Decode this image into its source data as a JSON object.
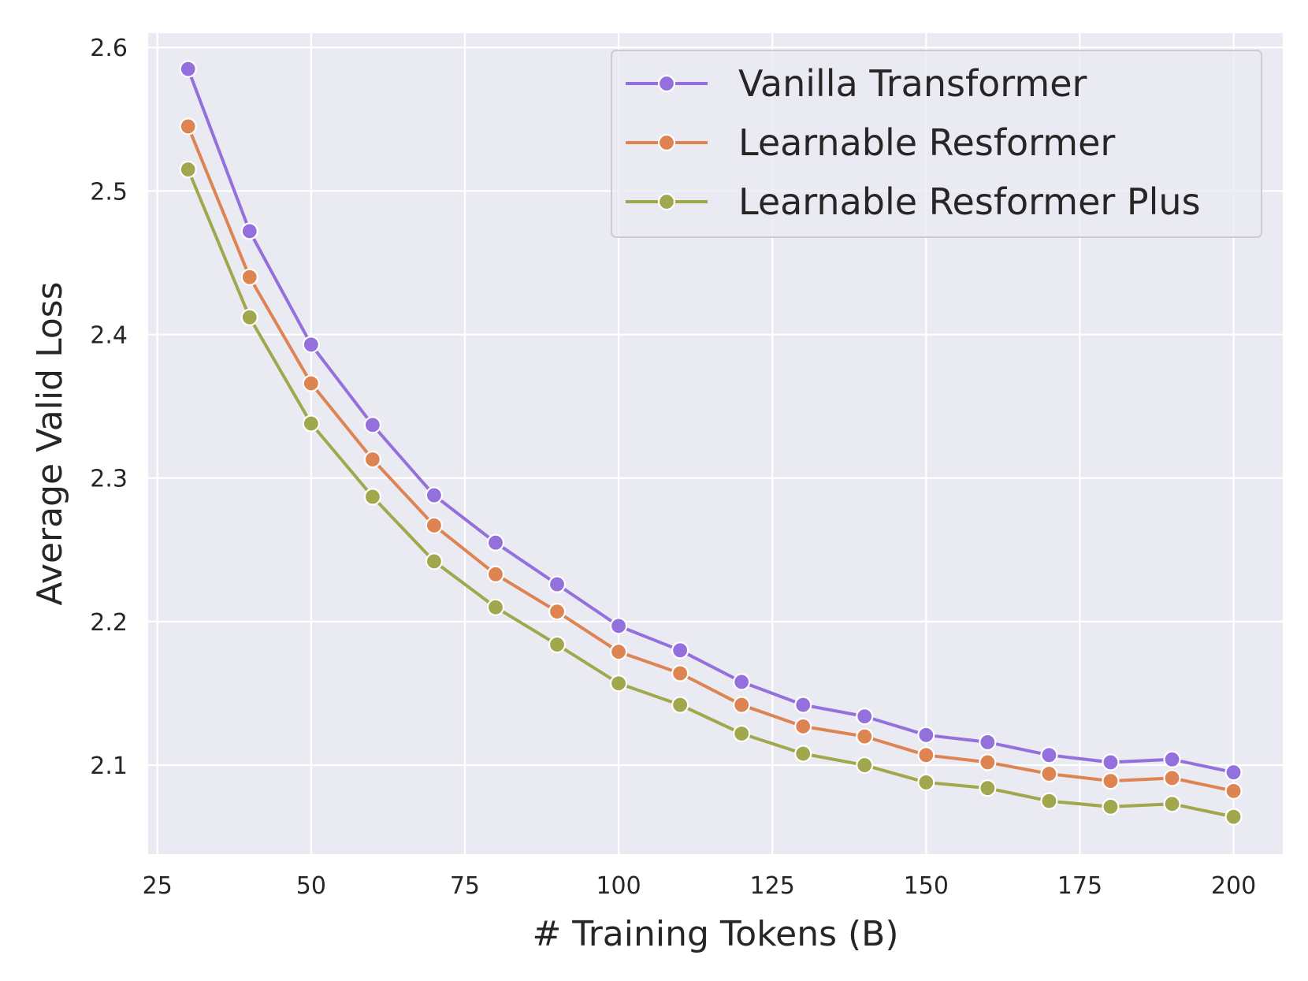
{
  "chart_data": {
    "type": "line",
    "title": "",
    "xlabel": "# Training Tokens (B)",
    "ylabel": "Average Valid Loss",
    "xlim": [
      23.5,
      208
    ],
    "ylim": [
      2.038,
      2.61
    ],
    "x_ticks": [
      25,
      50,
      75,
      100,
      125,
      150,
      175,
      200
    ],
    "y_ticks": [
      2.1,
      2.2,
      2.3,
      2.4,
      2.5,
      2.6
    ],
    "x_tick_labels": [
      "25",
      "50",
      "75",
      "100",
      "125",
      "150",
      "175",
      "200"
    ],
    "y_tick_labels": [
      "2.1",
      "2.2",
      "2.3",
      "2.4",
      "2.5",
      "2.6"
    ],
    "grid": true,
    "background": "#eaeaf2",
    "legend_position": "top-right",
    "x": [
      30,
      40,
      50,
      60,
      70,
      80,
      90,
      100,
      110,
      120,
      130,
      140,
      150,
      160,
      170,
      180,
      190,
      200
    ],
    "series": [
      {
        "name": "Vanilla Transformer",
        "color": "#9370db",
        "marker": "circle",
        "values": [
          2.585,
          2.472,
          2.393,
          2.337,
          2.288,
          2.255,
          2.226,
          2.197,
          2.18,
          2.158,
          2.142,
          2.134,
          2.121,
          2.116,
          2.107,
          2.102,
          2.104,
          2.095
        ]
      },
      {
        "name": "Learnable Resformer",
        "color": "#dd8452",
        "marker": "circle",
        "values": [
          2.545,
          2.44,
          2.366,
          2.313,
          2.267,
          2.233,
          2.207,
          2.179,
          2.164,
          2.142,
          2.127,
          2.12,
          2.107,
          2.102,
          2.094,
          2.089,
          2.091,
          2.082
        ]
      },
      {
        "name": "Learnable Resformer Plus",
        "color": "#a1a74d",
        "marker": "circle",
        "values": [
          2.515,
          2.412,
          2.338,
          2.287,
          2.242,
          2.21,
          2.184,
          2.157,
          2.142,
          2.122,
          2.108,
          2.1,
          2.088,
          2.084,
          2.075,
          2.071,
          2.073,
          2.064
        ]
      }
    ]
  }
}
